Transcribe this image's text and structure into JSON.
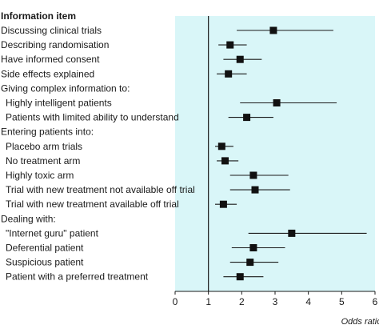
{
  "chart_data": {
    "type": "forest",
    "column_header": "Information item",
    "xlabel": "Odds ratio",
    "xlim": [
      0,
      6
    ],
    "xticks": [
      "0",
      "1",
      "2",
      "3",
      "4",
      "5",
      "6"
    ],
    "reference_line": 1,
    "background_color": "#d9f6f8",
    "rows": [
      {
        "label": "Discussing clinical trials",
        "indent": 0,
        "estimate": 2.95,
        "lower": 1.85,
        "upper": 4.75
      },
      {
        "label": "Describing randomisation",
        "indent": 0,
        "estimate": 1.65,
        "lower": 1.3,
        "upper": 2.15
      },
      {
        "label": "Have informed consent",
        "indent": 0,
        "estimate": 1.95,
        "lower": 1.45,
        "upper": 2.6
      },
      {
        "label": "Side effects explained",
        "indent": 0,
        "estimate": 1.6,
        "lower": 1.25,
        "upper": 2.15
      },
      {
        "label": "Giving complex information to:",
        "indent": 0,
        "heading": true
      },
      {
        "label": "Highly intelligent patients",
        "indent": 1,
        "estimate": 3.05,
        "lower": 1.95,
        "upper": 4.85
      },
      {
        "label": "Patients with limited ability to understand",
        "indent": 1,
        "estimate": 2.15,
        "lower": 1.6,
        "upper": 2.95
      },
      {
        "label": "Entering patients into:",
        "indent": 0,
        "heading": true
      },
      {
        "label": "Placebo arm trials",
        "indent": 1,
        "estimate": 1.4,
        "lower": 1.2,
        "upper": 1.75
      },
      {
        "label": "No treatment arm",
        "indent": 1,
        "estimate": 1.5,
        "lower": 1.25,
        "upper": 1.9
      },
      {
        "label": "Highly toxic arm",
        "indent": 1,
        "estimate": 2.35,
        "lower": 1.65,
        "upper": 3.4
      },
      {
        "label": "Trial with new treatment not available off trial",
        "indent": 1,
        "estimate": 2.4,
        "lower": 1.65,
        "upper": 3.45
      },
      {
        "label": "Trial with new treatment available off trial",
        "indent": 1,
        "estimate": 1.45,
        "lower": 1.2,
        "upper": 1.85
      },
      {
        "label": "Dealing with:",
        "indent": 0,
        "heading": true
      },
      {
        "label": "\"Internet guru\" patient",
        "indent": 1,
        "estimate": 3.5,
        "lower": 2.2,
        "upper": 5.75
      },
      {
        "label": "Deferential patient",
        "indent": 1,
        "estimate": 2.35,
        "lower": 1.7,
        "upper": 3.3
      },
      {
        "label": "Suspicious patient",
        "indent": 1,
        "estimate": 2.25,
        "lower": 1.65,
        "upper": 3.1
      },
      {
        "label": "Patient with a preferred treatment",
        "indent": 1,
        "estimate": 1.95,
        "lower": 1.45,
        "upper": 2.65
      }
    ]
  }
}
